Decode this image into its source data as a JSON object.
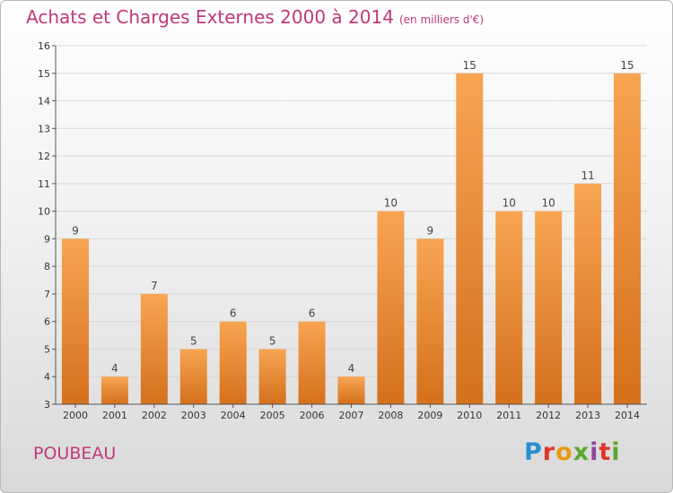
{
  "title": "Achats et Charges Externes 2000 à 2014",
  "subtitle": "(en milliers d'€)",
  "commune": "POUBEAU",
  "logo": "Proxiti",
  "colors": {
    "title": "#c0387a",
    "bar_light": "#f8a552",
    "bar_dark": "#d5701c",
    "axis": "#555555",
    "grid": "#d8d8d8"
  },
  "chart_data": {
    "type": "bar",
    "categories": [
      "2000",
      "2001",
      "2002",
      "2003",
      "2004",
      "2005",
      "2006",
      "2007",
      "2008",
      "2009",
      "2010",
      "2011",
      "2012",
      "2013",
      "2014"
    ],
    "values": [
      9,
      4,
      7,
      5,
      6,
      5,
      6,
      4,
      10,
      9,
      15,
      10,
      10,
      11,
      15
    ],
    "ylim": [
      3,
      16
    ],
    "yticks": [
      3,
      4,
      5,
      6,
      7,
      8,
      9,
      10,
      11,
      12,
      13,
      14,
      15,
      16
    ],
    "grid": true,
    "title": "Achats et Charges Externes 2000 à 2014",
    "xlabel": "",
    "ylabel": ""
  }
}
